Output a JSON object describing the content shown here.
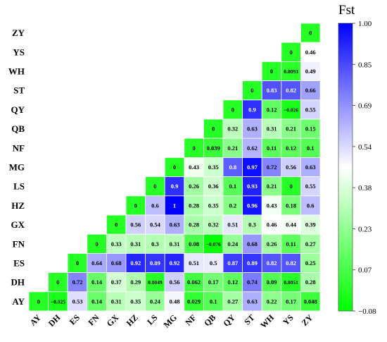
{
  "chart_data": {
    "type": "heatmap",
    "title": "",
    "colorbar_label": "Fst",
    "rows": [
      "ZY",
      "YS",
      "WH",
      "ST",
      "QY",
      "QB",
      "NF",
      "MG",
      "LS",
      "HZ",
      "GX",
      "FN",
      "ES",
      "DH",
      "AY"
    ],
    "columns": [
      "AY",
      "DH",
      "ES",
      "FN",
      "GX",
      "HZ",
      "LS",
      "MG",
      "NF",
      "QB",
      "QY",
      "ST",
      "WH",
      "YS",
      "ZY"
    ],
    "values": [
      [
        "",
        "",
        "",
        "",
        "",
        "",
        "",
        "",
        "",
        "",
        "",
        "",
        "",
        "",
        "0"
      ],
      [
        "",
        "",
        "",
        "",
        "",
        "",
        "",
        "",
        "",
        "",
        "",
        "",
        "",
        "0",
        "0.46"
      ],
      [
        "",
        "",
        "",
        "",
        "",
        "",
        "",
        "",
        "",
        "",
        "",
        "",
        "0",
        "0.0093",
        "0.49"
      ],
      [
        "",
        "",
        "",
        "",
        "",
        "",
        "",
        "",
        "",
        "",
        "",
        "0",
        "0.83",
        "0.82",
        "0.66"
      ],
      [
        "",
        "",
        "",
        "",
        "",
        "",
        "",
        "",
        "",
        "",
        "0",
        "0.9",
        "0.12",
        "-0.026",
        "0.55"
      ],
      [
        "",
        "",
        "",
        "",
        "",
        "",
        "",
        "",
        "",
        "0",
        "0.32",
        "0.63",
        "0.31",
        "0.21",
        "0.15"
      ],
      [
        "",
        "",
        "",
        "",
        "",
        "",
        "",
        "",
        "0",
        "0.039",
        "0.21",
        "0.62",
        "0.11",
        "0.12",
        "0.1"
      ],
      [
        "",
        "",
        "",
        "",
        "",
        "",
        "",
        "0",
        "0.43",
        "0.35",
        "0.8",
        "0.97",
        "0.72",
        "0.56",
        "0.63"
      ],
      [
        "",
        "",
        "",
        "",
        "",
        "",
        "0",
        "0.9",
        "0.26",
        "0.36",
        "0.1",
        "0.93",
        "0.21",
        "0",
        "0.55"
      ],
      [
        "",
        "",
        "",
        "",
        "",
        "0",
        "0.6",
        "1",
        "0.28",
        "0.35",
        "0.2",
        "0.96",
        "0.43",
        "0.18",
        "0.6"
      ],
      [
        "",
        "",
        "",
        "",
        "0",
        "0.56",
        "0.54",
        "0.63",
        "0.28",
        "0.32",
        "0.51",
        "0.3",
        "0.46",
        "0.44",
        "0.39"
      ],
      [
        "",
        "",
        "",
        "0",
        "0.33",
        "0.31",
        "0.3",
        "0.31",
        "0.08",
        "-0.076",
        "0.24",
        "0.68",
        "0.26",
        "0.11",
        "0.27"
      ],
      [
        "",
        "",
        "0",
        "0.64",
        "0.68",
        "0.92",
        "0.89",
        "0.92",
        "0.51",
        "0.5",
        "0.87",
        "0.89",
        "0.82",
        "0.82",
        "0.25"
      ],
      [
        "",
        "0",
        "0.72",
        "0.14",
        "0.37",
        "0.29",
        "0.0049",
        "0.56",
        "0.062",
        "0.17",
        "0.12",
        "0.74",
        "0.09",
        "0.0051",
        "0.28"
      ],
      [
        "0",
        "-0.025",
        "0.53",
        "0.14",
        "0.31",
        "0.35",
        "0.24",
        "0.48",
        "0.029",
        "0.1",
        "0.27",
        "0.63",
        "0.22",
        "0.17",
        "0.048"
      ]
    ],
    "colorbar_ticks": [
      "1.00",
      "0.85",
      "0.69",
      "0.54",
      "0.38",
      "0.23",
      "0.07",
      "−0.08"
    ],
    "colorscale": {
      "min": -0.08,
      "mid": 0.46,
      "max": 1.0,
      "low_color": "#00ff00",
      "mid_color": "#ffffff",
      "high_color": "#0000ff"
    }
  }
}
